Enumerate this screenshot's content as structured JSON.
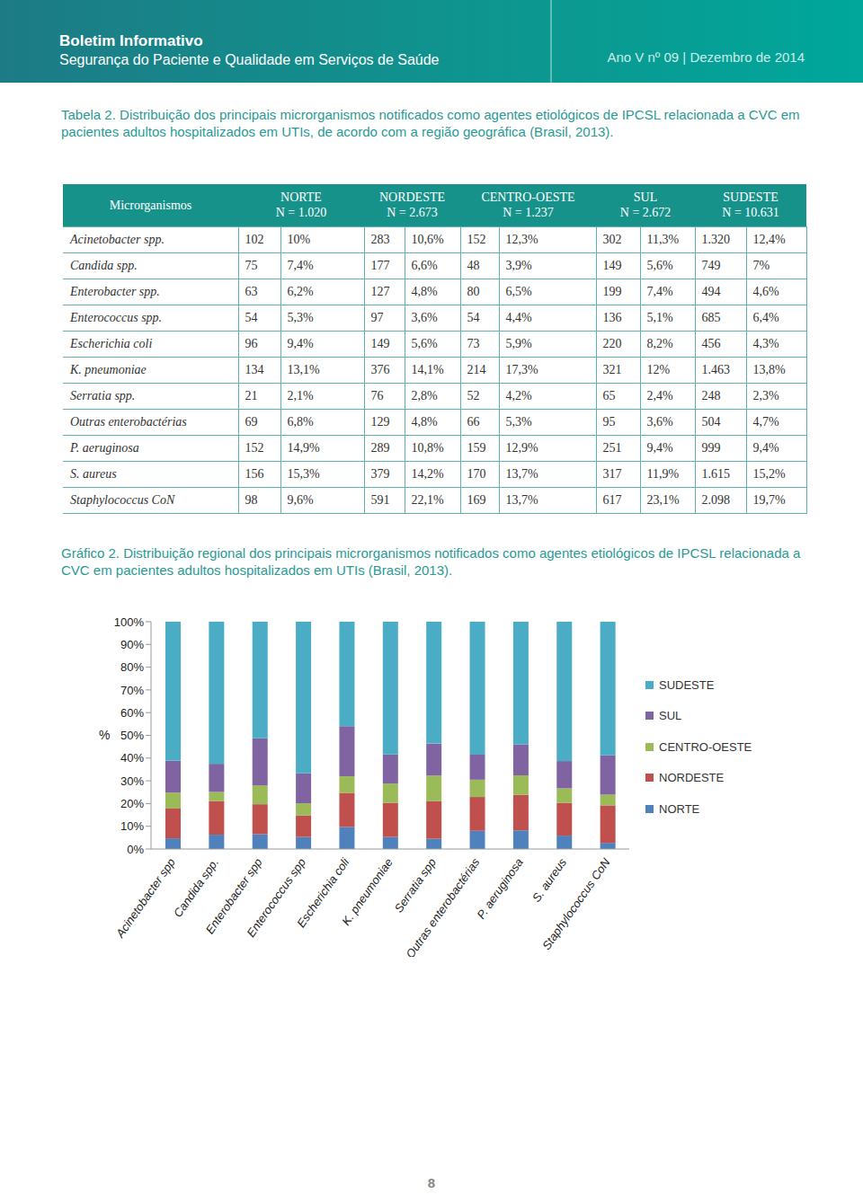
{
  "header": {
    "title": "Boletim Informativo",
    "subtitle": "Segurança do Paciente e Qualidade em Serviços de Saúde",
    "issue": "Ano V nº 09 | Dezembro de 2014"
  },
  "table": {
    "caption": "Tabela 2. Distribuição dos principais microrganismos notificados como agentes etiológicos de IPCSL relacionada a CVC em pacientes adultos hospitalizados em UTIs, de acordo com a região geográfica (Brasil, 2013).",
    "columns": [
      {
        "name": "Microrganismos"
      },
      {
        "name": "NORTE",
        "n": "N = 1.020"
      },
      {
        "name": "NORDESTE",
        "n": "N = 2.673"
      },
      {
        "name": "CENTRO-OESTE",
        "n": "N = 1.237"
      },
      {
        "name": "SUL",
        "n": "N = 2.672"
      },
      {
        "name": "SUDESTE",
        "n": "N = 10.631"
      }
    ],
    "rows": [
      [
        "Acinetobacter spp.",
        "102",
        "10%",
        "283",
        "10,6%",
        "152",
        "12,3%",
        "302",
        "11,3%",
        "1.320",
        "12,4%"
      ],
      [
        "Candida spp.",
        "75",
        "7,4%",
        "177",
        "6,6%",
        "48",
        "3,9%",
        "149",
        "5,6%",
        "749",
        "7%"
      ],
      [
        "Enterobacter spp.",
        "63",
        "6,2%",
        "127",
        "4,8%",
        "80",
        "6,5%",
        "199",
        "7,4%",
        "494",
        "4,6%"
      ],
      [
        "Enterococcus spp.",
        "54",
        "5,3%",
        "97",
        "3,6%",
        "54",
        "4,4%",
        "136",
        "5,1%",
        "685",
        "6,4%"
      ],
      [
        "Escherichia coli",
        "96",
        "9,4%",
        "149",
        "5,6%",
        "73",
        "5,9%",
        "220",
        "8,2%",
        "456",
        "4,3%"
      ],
      [
        "K. pneumoniae",
        "134",
        "13,1%",
        "376",
        "14,1%",
        "214",
        "17,3%",
        "321",
        "12%",
        "1.463",
        "13,8%"
      ],
      [
        "Serratia spp.",
        "21",
        "2,1%",
        "76",
        "2,8%",
        "52",
        "4,2%",
        "65",
        "2,4%",
        "248",
        "2,3%"
      ],
      [
        "Outras enterobactérias",
        "69",
        "6,8%",
        "129",
        "4,8%",
        "66",
        "5,3%",
        "95",
        "3,6%",
        "504",
        "4,7%"
      ],
      [
        "P. aeruginosa",
        "152",
        "14,9%",
        "289",
        "10,8%",
        "159",
        "12,9%",
        "251",
        "9,4%",
        "999",
        "9,4%"
      ],
      [
        "S. aureus",
        "156",
        "15,3%",
        "379",
        "14,2%",
        "170",
        "13,7%",
        "317",
        "11,9%",
        "1.615",
        "15,2%"
      ],
      [
        "Staphylococcus CoN",
        "98",
        "9,6%",
        "591",
        "22,1%",
        "169",
        "13,7%",
        "617",
        "23,1%",
        "2.098",
        "19,7%"
      ]
    ]
  },
  "chart_caption": "Gráfico 2. Distribuição regional dos principais microrganismos notificados como agentes etiológicos de IPCSL relacionada a CVC em pacientes adultos hospitalizados em UTIs (Brasil, 2013).",
  "chart_data": {
    "type": "bar",
    "stacked": true,
    "ylabel": "%",
    "categories": [
      "Acinetobacter spp",
      "Candida spp.",
      "Enterobacter spp",
      "Enterococcus spp",
      "Escherichia coli",
      "K. pneumoniae",
      "Serratia spp",
      "Outras enterobactérias",
      "P. aeruginosa",
      "S. aureus",
      "Staphylococcus CoN"
    ],
    "series": [
      {
        "name": "NORTE",
        "color": "#4f81bd",
        "values": [
          4.7,
          6.3,
          6.5,
          5.3,
          9.7,
          5.3,
          4.5,
          8.0,
          8.2,
          5.9,
          2.7
        ]
      },
      {
        "name": "NORDESTE",
        "color": "#c0504d",
        "values": [
          13.1,
          14.8,
          13.2,
          9.5,
          15.0,
          15.0,
          16.5,
          14.9,
          15.6,
          14.4,
          16.5
        ]
      },
      {
        "name": "CENTRO-OESTE",
        "color": "#9bbb59",
        "values": [
          7.0,
          4.0,
          8.3,
          5.3,
          7.3,
          8.5,
          11.3,
          7.6,
          8.6,
          6.4,
          4.7
        ]
      },
      {
        "name": "SUL",
        "color": "#8064a2",
        "values": [
          14.0,
          12.4,
          20.7,
          13.2,
          22.1,
          12.8,
          14.1,
          11.0,
          13.6,
          12.0,
          17.3
        ]
      },
      {
        "name": "SUDESTE",
        "color": "#4bacc6",
        "values": [
          61.2,
          62.5,
          51.3,
          66.7,
          45.9,
          58.4,
          53.6,
          58.5,
          54.0,
          61.3,
          58.8
        ]
      }
    ],
    "ylim": [
      0,
      100
    ],
    "yticks": [
      {
        "value": 0,
        "label": "0%"
      },
      {
        "value": 10,
        "label": "10%"
      },
      {
        "value": 20,
        "label": "20%"
      },
      {
        "value": 30,
        "label": "30%"
      },
      {
        "value": 40,
        "label": "40%"
      },
      {
        "value": 50,
        "label": "50%"
      },
      {
        "value": 60,
        "label": "60%"
      },
      {
        "value": 70,
        "label": "70%"
      },
      {
        "value": 80,
        "label": "80%"
      },
      {
        "value": 90,
        "label": "90%"
      },
      {
        "value": 100,
        "label": "100%"
      }
    ],
    "grid": false,
    "legend": "right"
  },
  "page_number": "8"
}
